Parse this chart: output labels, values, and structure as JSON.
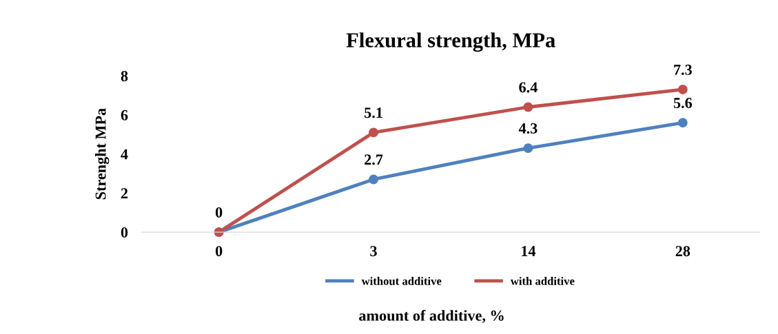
{
  "chart_data": {
    "type": "line",
    "title": "Flexural strength, MPa",
    "xlabel": "amount of additive, %",
    "ylabel": "Strenght MPa",
    "categories": [
      "0",
      "3",
      "14",
      "28"
    ],
    "series": [
      {
        "name": "without additive",
        "color": "#4f81bd",
        "values": [
          0,
          2.7,
          4.3,
          5.6
        ],
        "value_labels": [
          null,
          "2.7",
          "4.3",
          "5.6"
        ]
      },
      {
        "name": "with additive",
        "color": "#c0504d",
        "values": [
          0,
          5.1,
          6.4,
          7.3
        ],
        "value_labels": [
          "0",
          "5.1",
          "6.4",
          "7.3"
        ]
      }
    ],
    "ylim": [
      0,
      8
    ],
    "yticks": [
      0,
      2,
      4,
      6,
      8
    ],
    "grid": false,
    "legend": "bottom",
    "marker": "circle",
    "line_style": "solid"
  }
}
